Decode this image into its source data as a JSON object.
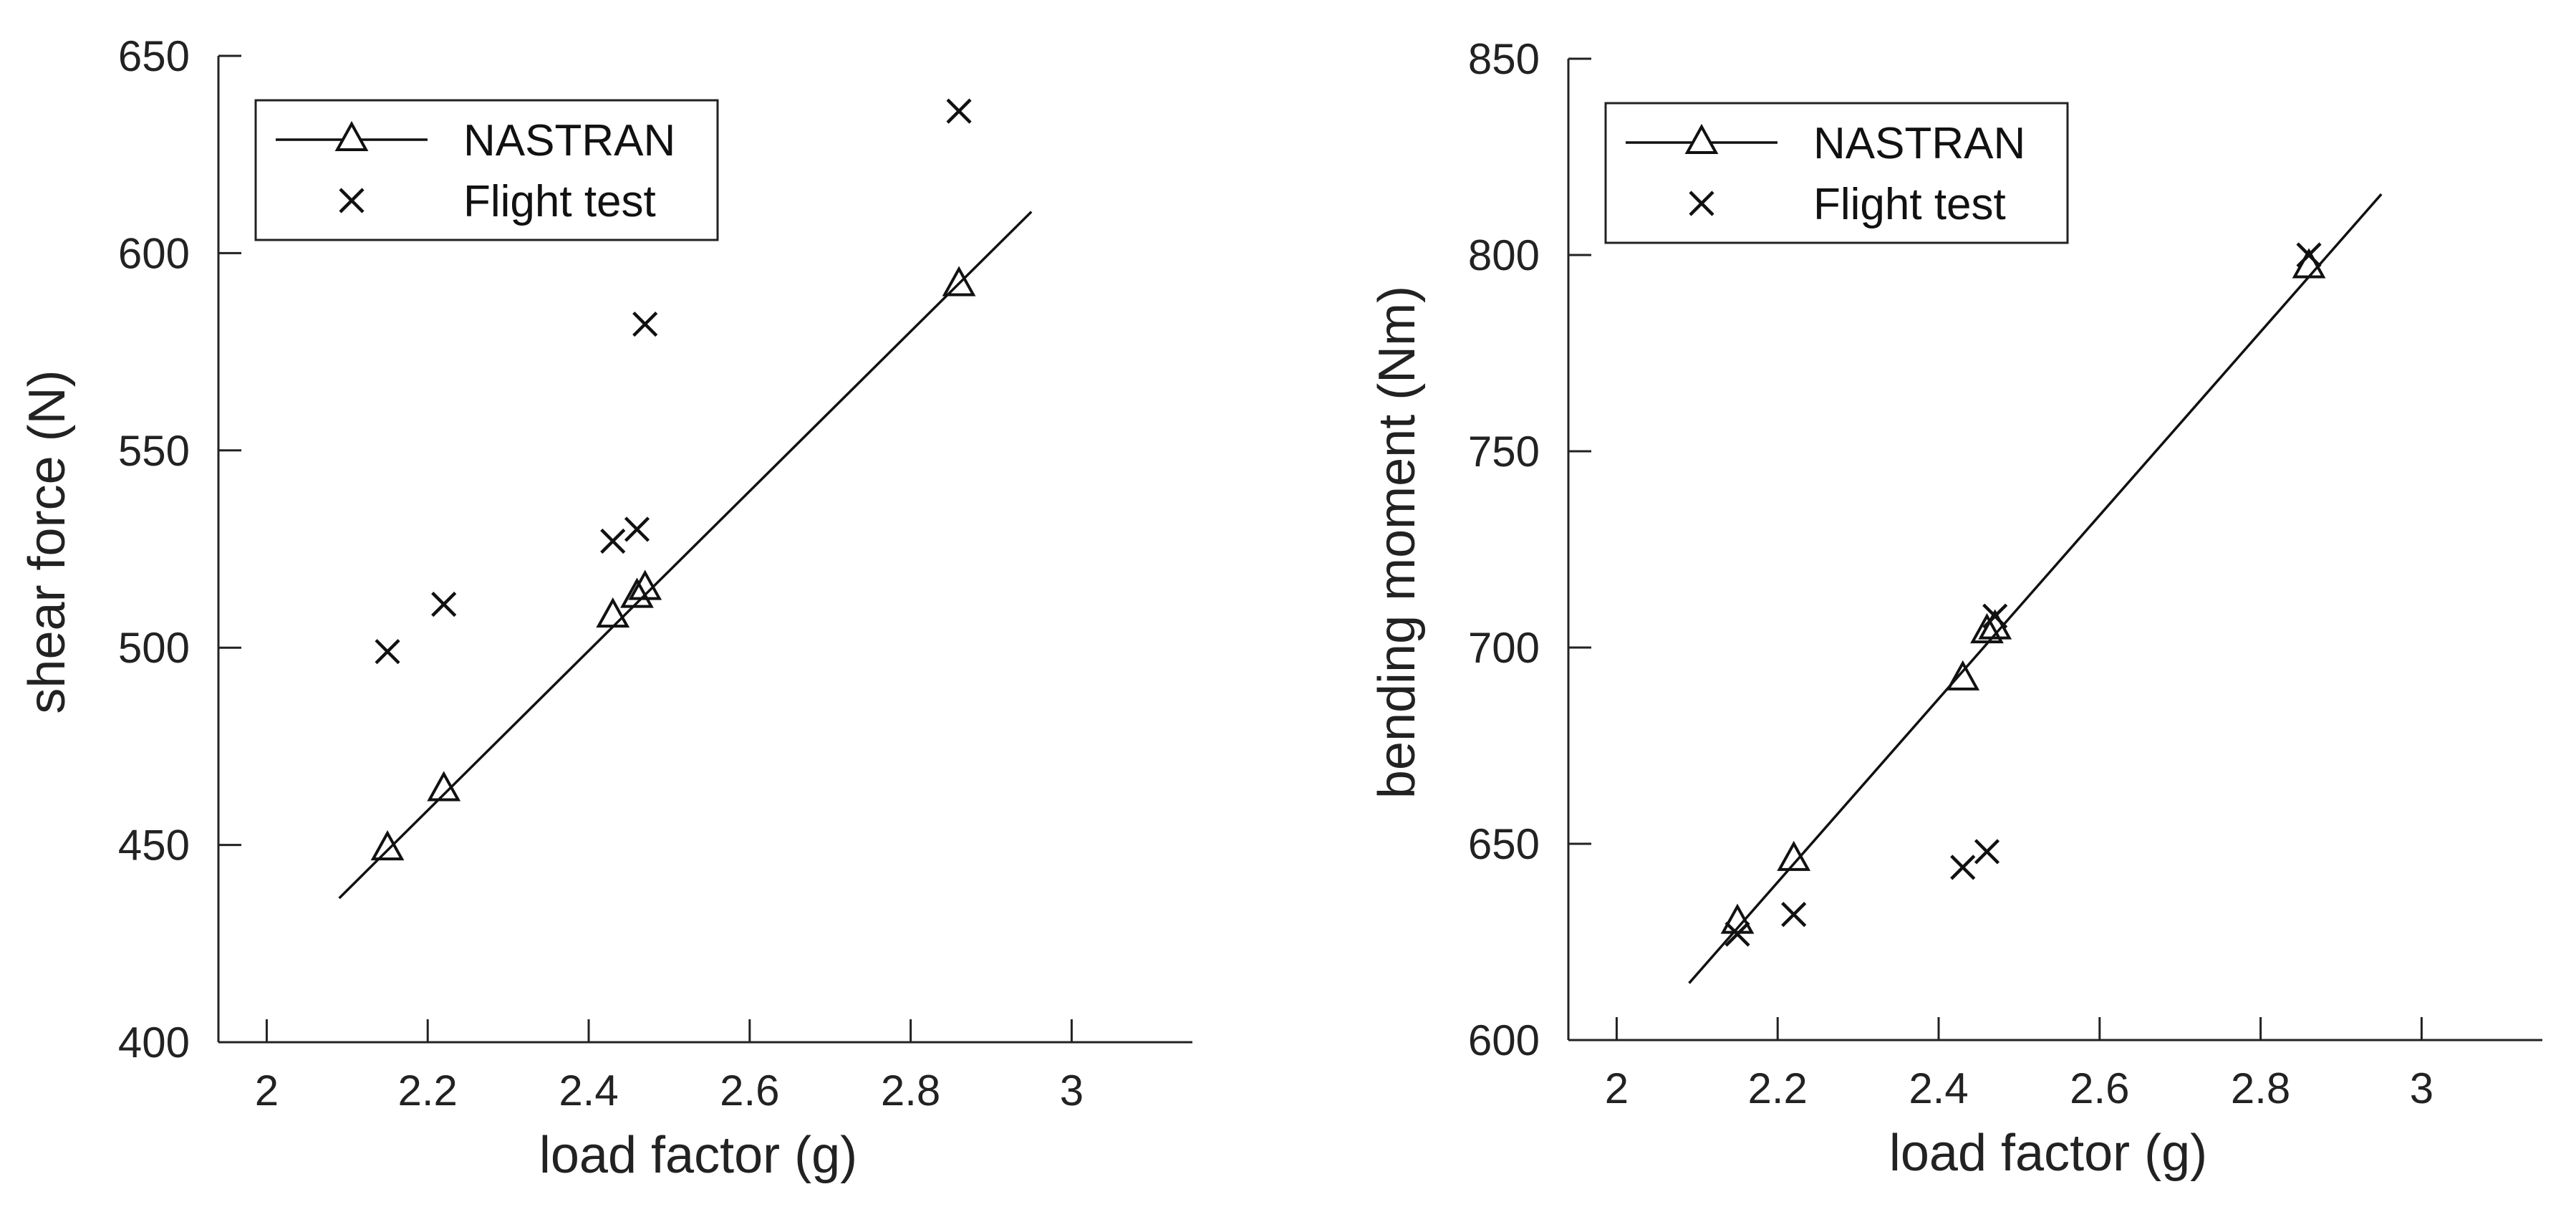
{
  "chart_data": [
    {
      "type": "scatter",
      "xlabel": "load factor (g)",
      "ylabel": "shear force (N)",
      "xlim": [
        1.94,
        3.15
      ],
      "ylim": [
        400,
        650
      ],
      "xticks": [
        2,
        2.2,
        2.4,
        2.6,
        2.8,
        3
      ],
      "xtick_labels": [
        "2",
        "2.2",
        "2.4",
        "2.6",
        "2.8",
        "3"
      ],
      "yticks": [
        400,
        450,
        500,
        550,
        600,
        650
      ],
      "ytick_labels": [
        "400",
        "450",
        "500",
        "550",
        "600",
        "650"
      ],
      "grid": false,
      "legend_position": "top-left",
      "series": [
        {
          "name": "NASTRAN",
          "marker": "triangle",
          "line": [
            [
              2.09,
              436.5
            ],
            [
              2.95,
              610.5
            ]
          ],
          "x": [
            2.15,
            2.22,
            2.43,
            2.46,
            2.47,
            2.86
          ],
          "y": [
            449,
            464,
            508,
            513,
            515,
            592
          ]
        },
        {
          "name": "Flight test",
          "marker": "x",
          "x": [
            2.15,
            2.22,
            2.43,
            2.46,
            2.47,
            2.86
          ],
          "y": [
            499,
            511,
            527,
            530,
            582,
            636
          ]
        }
      ]
    },
    {
      "type": "scatter",
      "xlabel": "load factor (g)",
      "ylabel": "bending moment (Nm)",
      "xlim": [
        1.94,
        3.15
      ],
      "ylim": [
        600,
        850
      ],
      "xticks": [
        2,
        2.2,
        2.4,
        2.6,
        2.8,
        3
      ],
      "xtick_labels": [
        "2",
        "2.2",
        "2.4",
        "2.6",
        "2.8",
        "3"
      ],
      "yticks": [
        600,
        650,
        700,
        750,
        800,
        850
      ],
      "ytick_labels": [
        "600",
        "650",
        "700",
        "750",
        "800",
        "850"
      ],
      "grid": false,
      "legend_position": "top-left",
      "series": [
        {
          "name": "NASTRAN",
          "marker": "triangle",
          "line": [
            [
              2.09,
              614.5
            ],
            [
              2.95,
              815.5
            ]
          ],
          "x": [
            2.15,
            2.22,
            2.43,
            2.46,
            2.47,
            2.86
          ],
          "y": [
            630,
            646,
            692,
            704,
            705,
            797
          ]
        },
        {
          "name": "Flight test",
          "marker": "x",
          "x": [
            2.15,
            2.22,
            2.43,
            2.46,
            2.47,
            2.86
          ],
          "y": [
            627,
            632,
            644,
            648,
            708,
            800
          ]
        }
      ]
    }
  ]
}
